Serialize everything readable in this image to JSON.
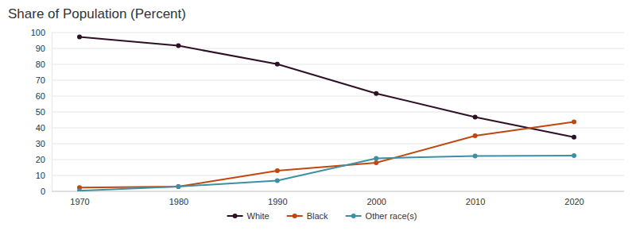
{
  "chart_data": {
    "type": "line",
    "title": "Share of Population (Percent)",
    "categories": [
      "1970",
      "1980",
      "1990",
      "2000",
      "2010",
      "2020"
    ],
    "series": [
      {
        "name": "White",
        "color": "#2e1026",
        "marker": "circle",
        "values": [
          97.3,
          91.7,
          80.1,
          61.6,
          46.8,
          34.1
        ]
      },
      {
        "name": "Black",
        "color": "#c0470e",
        "marker": "circle",
        "values": [
          2.4,
          3.0,
          13.0,
          18.0,
          35.0,
          43.8
        ]
      },
      {
        "name": "Other race(s)",
        "color": "#3d8fa3",
        "marker": "circle",
        "values": [
          0.4,
          3.0,
          6.8,
          20.8,
          22.3,
          22.5
        ]
      }
    ],
    "ylim": [
      0,
      100
    ],
    "yticks": [
      0,
      10,
      20,
      30,
      40,
      50,
      60,
      70,
      80,
      90,
      100
    ],
    "grid": true,
    "legend": "bottom"
  }
}
